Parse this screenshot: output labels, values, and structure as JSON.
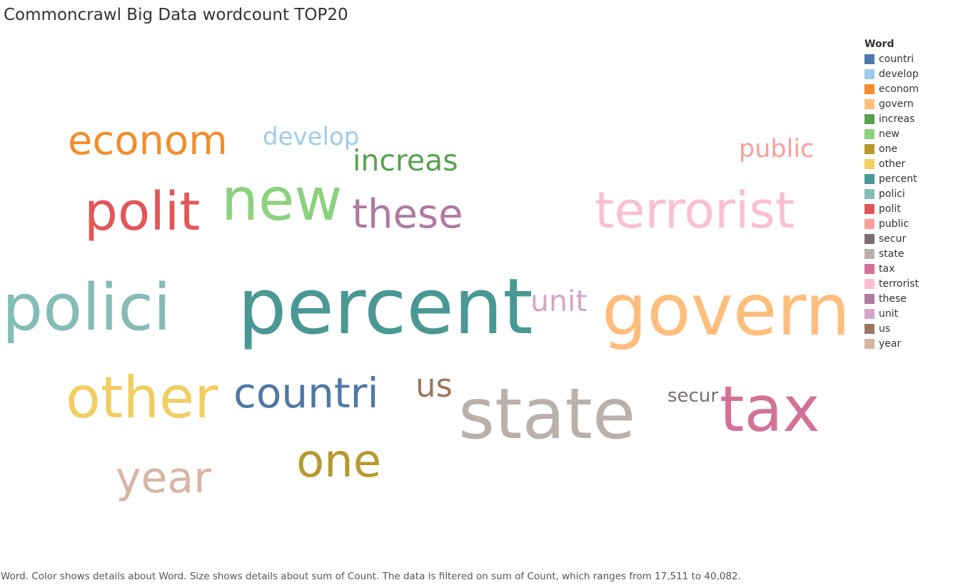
{
  "title": "Commoncrawl Big Data wordcount TOP20",
  "legend_title": "Word",
  "caption": "Word.  Color shows details about Word.  Size shows details about sum of Count. The data is filtered on sum of Count, which ranges from 17,511 to 40,082.",
  "chart_data": {
    "type": "wordcloud",
    "title": "Commoncrawl Big Data wordcount TOP20",
    "count_range": [
      17511,
      40082
    ],
    "words": [
      {
        "word": "countri",
        "color": "#4e79a7"
      },
      {
        "word": "develop",
        "color": "#a0cbe8"
      },
      {
        "word": "econom",
        "color": "#f28e2b"
      },
      {
        "word": "govern",
        "color": "#ffbe7d"
      },
      {
        "word": "increas",
        "color": "#59a14f"
      },
      {
        "word": "new",
        "color": "#8cd17d"
      },
      {
        "word": "one",
        "color": "#b6992d"
      },
      {
        "word": "other",
        "color": "#f1ce63"
      },
      {
        "word": "percent",
        "color": "#499894"
      },
      {
        "word": "polici",
        "color": "#86bcb6"
      },
      {
        "word": "polit",
        "color": "#e15759"
      },
      {
        "word": "public",
        "color": "#ff9d9a"
      },
      {
        "word": "secur",
        "color": "#79706e"
      },
      {
        "word": "state",
        "color": "#bab0ac"
      },
      {
        "word": "tax",
        "color": "#d37295"
      },
      {
        "word": "terrorist",
        "color": "#fabfd2"
      },
      {
        "word": "these",
        "color": "#b07aa1"
      },
      {
        "word": "unit",
        "color": "#d4a6c8"
      },
      {
        "word": "us",
        "color": "#9d7660"
      },
      {
        "word": "year",
        "color": "#d7b5a6"
      }
    ]
  }
}
